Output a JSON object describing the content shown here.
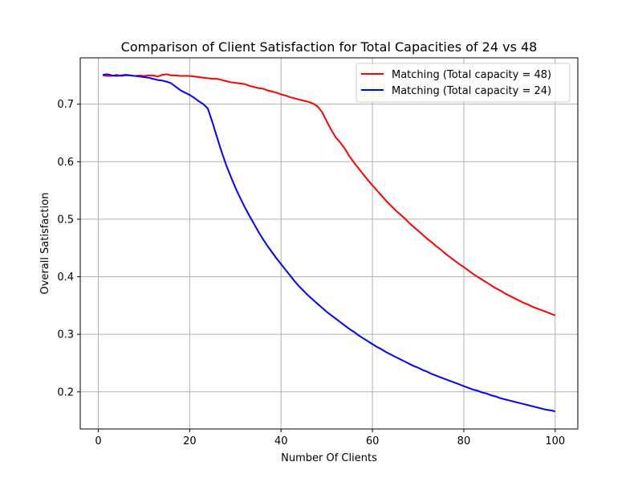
{
  "chart_data": {
    "type": "line",
    "title": "Comparison of Client Satisfaction for Total Capacities of 24 vs 48",
    "xlabel": "Number Of Clients",
    "ylabel": "Overall Satisfaction",
    "xlim": [
      -3.95,
      104.95
    ],
    "ylim": [
      0.1355,
      0.7805
    ],
    "xticks": [
      0,
      20,
      40,
      60,
      80,
      100
    ],
    "yticks": [
      0.2,
      0.3,
      0.4,
      0.5,
      0.6,
      0.7
    ],
    "xtick_labels": [
      "0",
      "20",
      "40",
      "60",
      "80",
      "100"
    ],
    "ytick_labels": [
      "0.2",
      "0.3",
      "0.4",
      "0.5",
      "0.6",
      "0.7"
    ],
    "grid": true,
    "legend_position": "top-right",
    "series": [
      {
        "name": "Matching (Total capacity = 48)",
        "color": "#ff0000",
        "x": [
          1,
          2,
          3,
          4,
          5,
          6,
          7,
          8,
          9,
          10,
          11,
          12,
          13,
          14,
          15,
          16,
          17,
          18,
          19,
          20,
          21,
          22,
          23,
          24,
          25,
          26,
          27,
          28,
          29,
          30,
          31,
          32,
          33,
          34,
          35,
          36,
          37,
          38,
          39,
          40,
          41,
          42,
          43,
          44,
          45,
          46,
          47,
          48,
          49,
          50,
          51,
          52,
          53,
          54,
          55,
          56,
          57,
          58,
          59,
          60,
          61,
          62,
          63,
          64,
          65,
          66,
          67,
          68,
          69,
          70,
          71,
          72,
          73,
          74,
          75,
          76,
          77,
          78,
          79,
          80,
          81,
          82,
          83,
          84,
          85,
          86,
          87,
          88,
          89,
          90,
          91,
          92,
          93,
          94,
          95,
          96,
          97,
          98,
          99,
          100
        ],
        "values": [
          0.75,
          0.749,
          0.749,
          0.751,
          0.749,
          0.75,
          0.75,
          0.749,
          0.75,
          0.749,
          0.75,
          0.75,
          0.748,
          0.751,
          0.752,
          0.75,
          0.75,
          0.749,
          0.749,
          0.749,
          0.748,
          0.747,
          0.746,
          0.745,
          0.744,
          0.744,
          0.742,
          0.74,
          0.738,
          0.737,
          0.736,
          0.735,
          0.732,
          0.73,
          0.728,
          0.727,
          0.724,
          0.722,
          0.72,
          0.717,
          0.715,
          0.712,
          0.71,
          0.708,
          0.706,
          0.704,
          0.701,
          0.696,
          0.686,
          0.67,
          0.655,
          0.642,
          0.633,
          0.622,
          0.609,
          0.598,
          0.588,
          0.578,
          0.568,
          0.559,
          0.55,
          0.541,
          0.532,
          0.524,
          0.516,
          0.509,
          0.502,
          0.494,
          0.487,
          0.48,
          0.473,
          0.466,
          0.46,
          0.453,
          0.447,
          0.44,
          0.434,
          0.428,
          0.422,
          0.417,
          0.411,
          0.405,
          0.4,
          0.395,
          0.39,
          0.385,
          0.38,
          0.376,
          0.371,
          0.367,
          0.363,
          0.359,
          0.355,
          0.352,
          0.348,
          0.345,
          0.342,
          0.339,
          0.336,
          0.333
        ]
      },
      {
        "name": "Matching (Total capacity = 24)",
        "color": "#0000ff",
        "x": [
          1,
          2,
          3,
          4,
          5,
          6,
          7,
          8,
          9,
          10,
          11,
          12,
          13,
          14,
          15,
          16,
          17,
          18,
          19,
          20,
          21,
          22,
          23,
          24,
          25,
          26,
          27,
          28,
          29,
          30,
          31,
          32,
          33,
          34,
          35,
          36,
          37,
          38,
          39,
          40,
          41,
          42,
          43,
          44,
          45,
          46,
          47,
          48,
          49,
          50,
          51,
          52,
          53,
          54,
          55,
          56,
          57,
          58,
          59,
          60,
          61,
          62,
          63,
          64,
          65,
          66,
          67,
          68,
          69,
          70,
          71,
          72,
          73,
          74,
          75,
          76,
          77,
          78,
          79,
          80,
          81,
          82,
          83,
          84,
          85,
          86,
          87,
          88,
          89,
          90,
          91,
          92,
          93,
          94,
          95,
          96,
          97,
          98,
          99,
          100
        ],
        "values": [
          0.751,
          0.752,
          0.75,
          0.749,
          0.75,
          0.751,
          0.75,
          0.749,
          0.748,
          0.747,
          0.746,
          0.744,
          0.742,
          0.741,
          0.739,
          0.736,
          0.73,
          0.724,
          0.72,
          0.716,
          0.711,
          0.705,
          0.7,
          0.692,
          0.668,
          0.642,
          0.617,
          0.594,
          0.574,
          0.555,
          0.538,
          0.522,
          0.507,
          0.493,
          0.479,
          0.466,
          0.454,
          0.443,
          0.432,
          0.422,
          0.412,
          0.402,
          0.392,
          0.383,
          0.375,
          0.367,
          0.36,
          0.353,
          0.346,
          0.339,
          0.333,
          0.327,
          0.321,
          0.315,
          0.309,
          0.304,
          0.298,
          0.293,
          0.288,
          0.283,
          0.278,
          0.274,
          0.269,
          0.265,
          0.261,
          0.257,
          0.253,
          0.249,
          0.245,
          0.242,
          0.238,
          0.235,
          0.231,
          0.228,
          0.225,
          0.222,
          0.219,
          0.216,
          0.213,
          0.21,
          0.207,
          0.204,
          0.202,
          0.199,
          0.197,
          0.194,
          0.192,
          0.189,
          0.187,
          0.185,
          0.183,
          0.181,
          0.179,
          0.177,
          0.175,
          0.173,
          0.171,
          0.169,
          0.168,
          0.166
        ]
      }
    ]
  }
}
